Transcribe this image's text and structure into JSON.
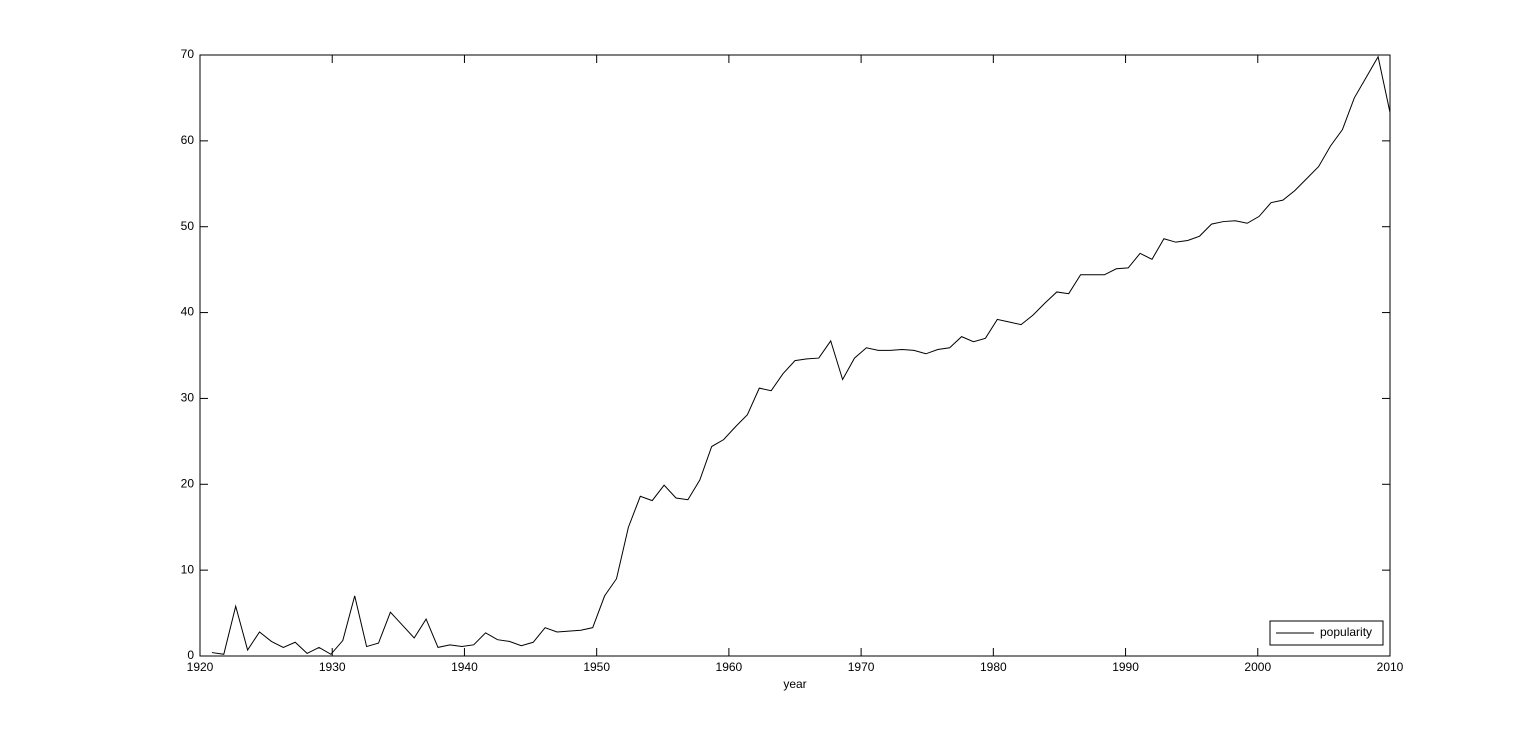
{
  "chart_data": {
    "type": "line",
    "xlabel": "year",
    "x": [
      1920.9,
      1921.8,
      1922.7,
      1923.6,
      1924.5,
      1925.4,
      1926.3,
      1927.2,
      1928.1,
      1929.0,
      1929.9,
      1930.8,
      1931.7,
      1932.6,
      1933.5,
      1934.4,
      1935.3,
      1936.2,
      1937.1,
      1938.0,
      1938.9,
      1939.8,
      1940.7,
      1941.6,
      1942.5,
      1943.4,
      1944.3,
      1945.2,
      1946.1,
      1947.0,
      1947.9,
      1948.8,
      1949.7,
      1950.6,
      1951.5,
      1952.4,
      1953.3,
      1954.2,
      1955.1,
      1956.0,
      1956.9,
      1957.8,
      1958.7,
      1959.6,
      1960.5,
      1961.4,
      1962.3,
      1963.2,
      1964.1,
      1965.0,
      1965.9,
      1966.8,
      1967.7,
      1968.6,
      1969.5,
      1970.4,
      1971.3,
      1972.2,
      1973.1,
      1974.0,
      1974.9,
      1975.8,
      1976.7,
      1977.6,
      1978.5,
      1979.4,
      1980.3,
      1981.2,
      1982.1,
      1983.0,
      1983.9,
      1984.8,
      1985.7,
      1986.6,
      1987.5,
      1988.4,
      1989.3,
      1990.2,
      1991.1,
      1992.0,
      1992.9,
      1993.8,
      1994.7,
      1995.6,
      1996.5,
      1997.4,
      1998.3,
      1999.2,
      2000.1,
      2001.0,
      2001.9,
      2002.8,
      2003.7,
      2004.6,
      2005.5,
      2006.4,
      2007.3,
      2008.2,
      2009.1,
      2010.0
    ],
    "series": [
      {
        "name": "popularity",
        "color": "#000000",
        "values": [
          0.4,
          0.2,
          5.8,
          0.7,
          2.8,
          1.7,
          1.0,
          1.6,
          0.3,
          1.0,
          0.2,
          1.8,
          7.0,
          1.1,
          1.5,
          5.1,
          3.6,
          2.1,
          4.3,
          1.0,
          1.3,
          1.1,
          1.3,
          2.7,
          1.9,
          1.7,
          1.2,
          1.6,
          3.3,
          2.8,
          2.9,
          3.0,
          3.3,
          7.0,
          9.0,
          15.0,
          18.6,
          18.1,
          19.9,
          18.4,
          18.2,
          20.5,
          24.4,
          25.2,
          26.7,
          28.1,
          31.2,
          30.9,
          32.9,
          34.4,
          34.6,
          34.7,
          36.7,
          32.2,
          34.7,
          35.9,
          35.6,
          35.6,
          35.7,
          35.6,
          35.2,
          35.7,
          35.9,
          37.2,
          36.6,
          37.0,
          39.2,
          38.9,
          38.6,
          39.7,
          41.1,
          42.4,
          42.2,
          44.4,
          44.4,
          44.4,
          45.1,
          45.2,
          46.9,
          46.2,
          48.6,
          48.2,
          48.4,
          48.9,
          50.3,
          50.6,
          50.7,
          50.4,
          51.2,
          52.8,
          53.1,
          54.2,
          55.6,
          57.0,
          59.4,
          61.3,
          65.0,
          67.4,
          69.8,
          63.3
        ]
      }
    ],
    "xlim": [
      1920,
      2010
    ],
    "xticks": [
      1920,
      1930,
      1940,
      1950,
      1960,
      1970,
      1980,
      1990,
      2000,
      2010
    ],
    "ylim": [
      0,
      70
    ],
    "yticks": [
      0,
      10,
      20,
      30,
      40,
      50,
      60,
      70
    ],
    "grid": false,
    "legend": "lower right"
  }
}
